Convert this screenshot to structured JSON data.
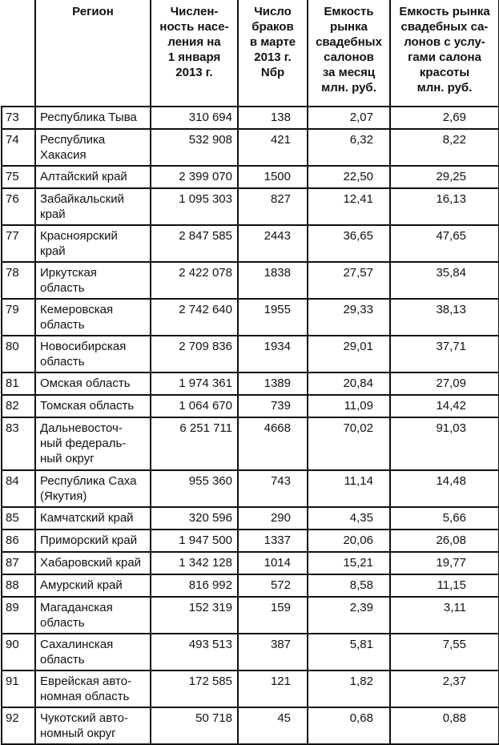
{
  "table": {
    "headers": [
      "",
      "Регион",
      "Числен-\nность насе-\nления на\n1 января\n2013 г.",
      "Число\nбраков\nв марте\n2013 г.\nNбр",
      "Емкость\nрынка\nсвадебных\nсалонов\nза месяц\nмлн. руб.",
      "Емкость рынка\nсвадебных са-\nлонов с услу-\nгами салона\nкрасоты\nмлн. руб."
    ],
    "rows": [
      {
        "num": "73",
        "region": "Республика Тыва",
        "population": "310 694",
        "marriages": "138",
        "capacity": "2,07",
        "capacity_beauty": "2,69"
      },
      {
        "num": "74",
        "region": "Республика\nХакасия",
        "population": "532 908",
        "marriages": "421",
        "capacity": "6,32",
        "capacity_beauty": "8,22"
      },
      {
        "num": "75",
        "region": "Алтайский край",
        "population": "2 399 070",
        "marriages": "1500",
        "capacity": "22,50",
        "capacity_beauty": "29,25"
      },
      {
        "num": "76",
        "region": "Забайкальский\nкрай",
        "population": "1 095 303",
        "marriages": "827",
        "capacity": "12,41",
        "capacity_beauty": "16,13"
      },
      {
        "num": "77",
        "region": "Красноярский\nкрай",
        "population": "2 847 585",
        "marriages": "2443",
        "capacity": "36,65",
        "capacity_beauty": "47,65"
      },
      {
        "num": "78",
        "region": "Иркутская\nобласть",
        "population": "2 422 078",
        "marriages": "1838",
        "capacity": "27,57",
        "capacity_beauty": "35,84"
      },
      {
        "num": "79",
        "region": "Кемеровская\nобласть",
        "population": "2 742 640",
        "marriages": "1955",
        "capacity": "29,33",
        "capacity_beauty": "38,13"
      },
      {
        "num": "80",
        "region": "Новосибирская\nобласть",
        "population": "2 709 836",
        "marriages": "1934",
        "capacity": "29,01",
        "capacity_beauty": "37,71"
      },
      {
        "num": "81",
        "region": "Омская область",
        "population": "1 974 361",
        "marriages": "1389",
        "capacity": "20,84",
        "capacity_beauty": "27,09"
      },
      {
        "num": "82",
        "region": "Томская область",
        "population": "1 064 670",
        "marriages": "739",
        "capacity": "11,09",
        "capacity_beauty": "14,42"
      },
      {
        "num": "83",
        "region": "Дальневосточ-\nный федераль-\nный округ",
        "population": "6 251 711",
        "marriages": "4668",
        "capacity": "70,02",
        "capacity_beauty": "91,03"
      },
      {
        "num": "84",
        "region": "Республика Саха\n(Якутия)",
        "population": "955 360",
        "marriages": "743",
        "capacity": "11,14",
        "capacity_beauty": "14,48"
      },
      {
        "num": "85",
        "region": "Камчатский край",
        "population": "320 596",
        "marriages": "290",
        "capacity": "4,35",
        "capacity_beauty": "5,66"
      },
      {
        "num": "86",
        "region": "Приморский край",
        "population": "1 947 500",
        "marriages": "1337",
        "capacity": "20,06",
        "capacity_beauty": "26,08"
      },
      {
        "num": "87",
        "region": "Хабаровский край",
        "population": "1 342 128",
        "marriages": "1014",
        "capacity": "15,21",
        "capacity_beauty": "19,77"
      },
      {
        "num": "88",
        "region": "Амурский край",
        "population": "816 992",
        "marriages": "572",
        "capacity": "8,58",
        "capacity_beauty": "11,15"
      },
      {
        "num": "89",
        "region": "Магаданская\nобласть",
        "population": "152 319",
        "marriages": "159",
        "capacity": "2,39",
        "capacity_beauty": "3,11"
      },
      {
        "num": "90",
        "region": "Сахалинская\nобласть",
        "population": "493 513",
        "marriages": "387",
        "capacity": "5,81",
        "capacity_beauty": "7,55"
      },
      {
        "num": "91",
        "region": "Еврейская авто-\nномная область",
        "population": "172 585",
        "marriages": "121",
        "capacity": "1,82",
        "capacity_beauty": "2,37"
      },
      {
        "num": "92",
        "region": "Чукотский авто-\nномный округ",
        "population": "50 718",
        "marriages": "45",
        "capacity": "0,68",
        "capacity_beauty": "0,88"
      }
    ]
  }
}
